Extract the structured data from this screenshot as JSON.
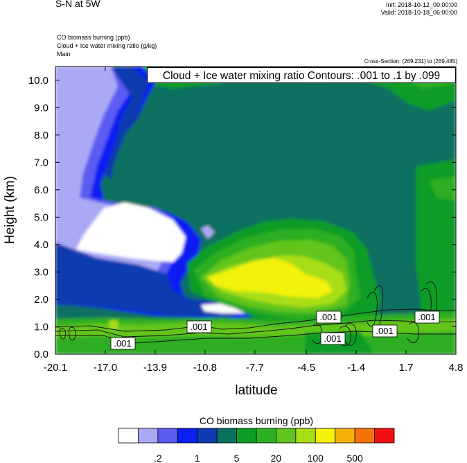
{
  "header": {
    "title": "S-N at 5W",
    "init": "Init: 2018-10-12_00:00:00",
    "valid": "Valid: 2018-10-18_06:00:00",
    "field1": "CO biomass burning   (ppb)",
    "field2": "Cloud + Ice water mixing ratio   (g/kg)",
    "field3": "Main",
    "cross_section": "Cross-Section: (269,231) to (269,485)"
  },
  "contour_info": "Cloud + Ice water mixing ratio Contours: .001 to .1 by .099",
  "colors": {
    "levels": [
      "#ffffff",
      "#a9a9f6",
      "#5b5bf2",
      "#0a1ff2",
      "#0f3bb0",
      "#0b7060",
      "#0d9c26",
      "#2eae22",
      "#62c51f",
      "#a8de14",
      "#f2f20a",
      "#f5b10a",
      "#f5720a",
      "#f20f0f"
    ]
  },
  "chart_data": {
    "type": "heatmap",
    "xlabel": "latitude",
    "ylabel": "Height (km)",
    "x_ticks": [
      "-20.1",
      "-17.0",
      "-13.9",
      "-10.8",
      "-7.7",
      "-4.5",
      "-1.4",
      "1.7",
      "4.8"
    ],
    "y_ticks": [
      "0.0",
      "1.0",
      "2.0",
      "3.0",
      "4.0",
      "5.0",
      "6.0",
      "7.0",
      "8.0",
      "9.0",
      "10.0"
    ],
    "xlim": [
      -20.1,
      4.8
    ],
    "ylim": [
      0,
      10.5
    ],
    "colorbar": {
      "title": "CO biomass burning  (ppb)",
      "tick_labels": [
        ".2",
        "1",
        "5",
        "20",
        "100",
        "500"
      ]
    },
    "contour_labels": [
      ".001",
      ".001",
      ".001",
      ".001",
      ".001",
      ".001",
      ".001"
    ]
  }
}
